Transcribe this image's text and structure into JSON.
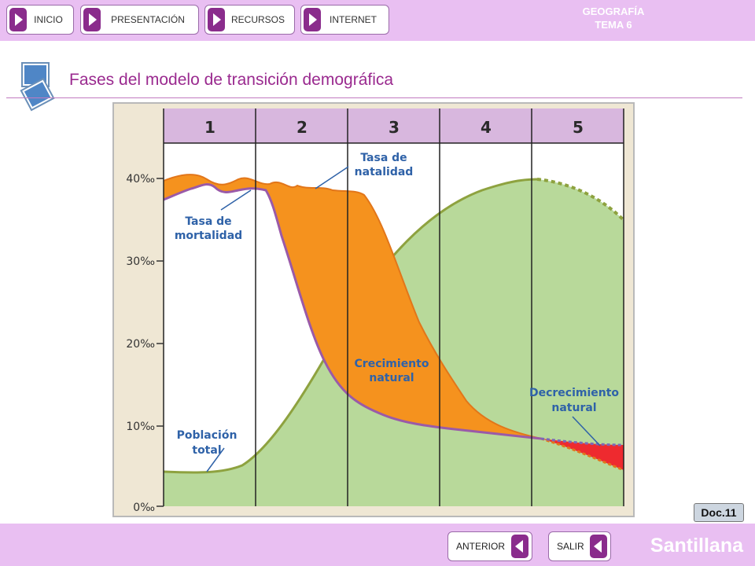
{
  "nav": {
    "inicio": "INICIO",
    "presentacion": "PRESENTACIÓN",
    "recursos": "RECURSOS",
    "internet": "INTERNET"
  },
  "subject": {
    "line1": "GEOGRAFÍA",
    "line2": "TEMA 6"
  },
  "title": "Fases del modelo de transición demográfica",
  "chart_data": {
    "type": "area",
    "phases": [
      "1",
      "2",
      "3",
      "4",
      "5"
    ],
    "y_ticks": [
      "40‰",
      "30‰",
      "20‰",
      "10‰",
      "0‰"
    ],
    "ylim": [
      0,
      40
    ],
    "annotations": {
      "natalidad": [
        "Tasa de",
        "natalidad"
      ],
      "mortalidad": [
        "Tasa de",
        "mortalidad"
      ],
      "crecimiento": [
        "Crecimiento",
        "natural"
      ],
      "decrecimiento": [
        "Decrecimiento",
        "natural"
      ],
      "poblacion": [
        "Población",
        "total"
      ]
    },
    "colors": {
      "natalidad_area": "#f5921e",
      "decrecimiento_area": "#ee2a2f",
      "poblacion_area": "#b8d99a",
      "poblacion_line": "#8ea23f",
      "mortalidad_line": "#9a5aa8",
      "header": "#d8b7de"
    }
  },
  "doc_label": "Doc.11",
  "bottom": {
    "anterior": "ANTERIOR",
    "salir": "SALIR"
  },
  "brand": "Santillana"
}
